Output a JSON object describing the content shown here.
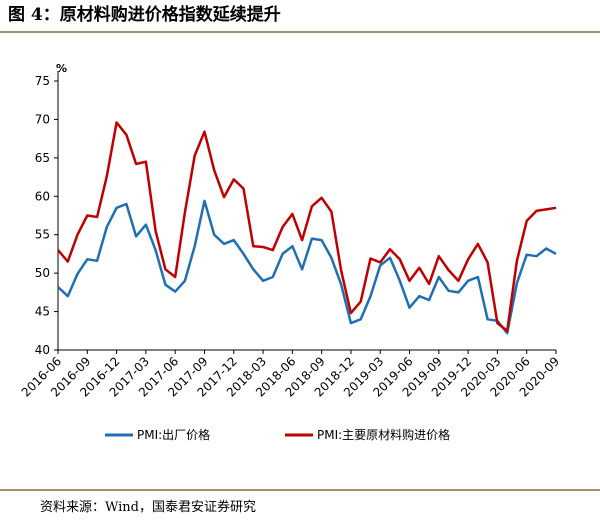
{
  "chart_data": {
    "type": "line",
    "title": "图 4：原材料购进价格指数延续提升",
    "unit_label": "%",
    "source": "资料来源：Wind，国泰君安证券研究",
    "categories": [
      "2016-06",
      null,
      null,
      "2016-09",
      null,
      null,
      "2016-12",
      null,
      null,
      "2017-03",
      null,
      null,
      "2017-06",
      null,
      null,
      "2017-09",
      null,
      null,
      "2017-12",
      null,
      null,
      "2018-03",
      null,
      null,
      "2018-06",
      null,
      null,
      "2018-09",
      null,
      null,
      "2018-12",
      null,
      null,
      "2019-03",
      null,
      null,
      "2019-06",
      null,
      null,
      "2019-09",
      null,
      null,
      "2019-12",
      null,
      null,
      "2020-03",
      null,
      null,
      "2020-06",
      null,
      null,
      "2020-09"
    ],
    "series": [
      {
        "name": "PMI:出厂价格",
        "color": "#1f6fb4",
        "values": [
          48.2,
          47.0,
          49.9,
          51.8,
          51.6,
          56.0,
          58.5,
          59.0,
          54.8,
          56.3,
          53.0,
          48.5,
          47.6,
          49.0,
          53.5,
          59.4,
          55.0,
          53.8,
          54.3,
          52.5,
          50.5,
          49.0,
          49.5,
          52.5,
          53.5,
          50.5,
          54.5,
          54.3,
          52.0,
          48.5,
          43.5,
          44.0,
          47.0,
          51.0,
          52.0,
          49.0,
          45.5,
          47.0,
          46.5,
          49.5,
          47.7,
          47.5,
          49.0,
          49.5,
          44.0,
          43.8,
          42.2,
          48.7,
          52.4,
          52.2,
          53.2,
          52.5
        ]
      },
      {
        "name": "PMI:主要原材料购进价格",
        "color": "#c00000",
        "values": [
          53.0,
          51.5,
          55.0,
          57.5,
          57.3,
          62.6,
          69.6,
          68.0,
          64.2,
          64.5,
          55.5,
          50.5,
          49.5,
          57.9,
          65.3,
          68.4,
          63.4,
          59.9,
          62.2,
          61.0,
          53.5,
          53.4,
          53.0,
          56.0,
          57.7,
          54.3,
          58.7,
          59.8,
          58.0,
          50.3,
          44.8,
          46.3,
          51.9,
          51.4,
          53.1,
          51.8,
          49.0,
          50.7,
          48.6,
          52.2,
          50.4,
          49.0,
          51.8,
          53.8,
          51.4,
          43.5,
          42.5,
          51.6,
          56.8,
          58.1,
          58.3,
          58.5
        ]
      }
    ],
    "ylim": [
      40,
      75
    ],
    "yticks": [
      40,
      45,
      50,
      55,
      60,
      65,
      70,
      75
    ],
    "grid": false
  }
}
